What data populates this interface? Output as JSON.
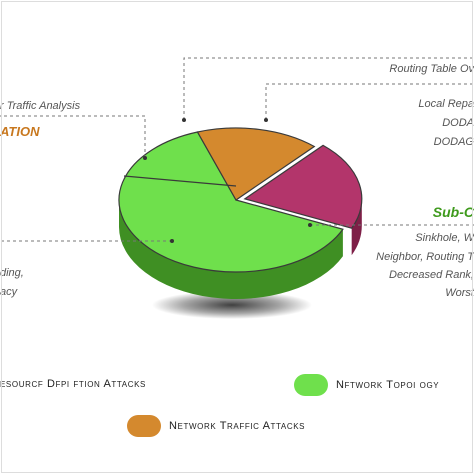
{
  "chart_data": {
    "type": "pie",
    "slices": [
      {
        "name": "Resource Depletion Attacks",
        "value": 20,
        "color": "#b3356b",
        "side": "#7e1f47"
      },
      {
        "name": "Network Topology Attacks",
        "value": 63,
        "color": "#6fe04c",
        "side": "#3f8f23"
      },
      {
        "name": "Network Traffic Attacks",
        "value": 17,
        "color": "#d4892e",
        "side": "#9a5b16"
      }
    ],
    "legend_placement": "bottom"
  },
  "annotations": {
    "routing_table": "Routing Table Ov",
    "traffic_analysis": "r Traffic Analysis",
    "ation_heading": "ATION",
    "local_repair": "Local Repa",
    "dodag1": "DODA",
    "dodag2": "DODAG",
    "sub_heading": "Sub-C",
    "sinkhole": "Sinkhole, W",
    "neighbor": "Neighbor, Routing T",
    "decreased_rank": "Decreased Rank,",
    "worst": "Worst",
    "ding": "ding,",
    "acy": "acy"
  },
  "legend": {
    "item1": "esourcf Dfpi ftion Attacks",
    "item2": "Nftwork Topoi ogy",
    "item3": "Network Traffic Attacks"
  },
  "colors": {
    "heading_orange": "#c8781f",
    "heading_green": "#3e9a1c",
    "legend_red": "#b3356b",
    "legend_green": "#6fe04c",
    "legend_orange": "#d4892e"
  }
}
